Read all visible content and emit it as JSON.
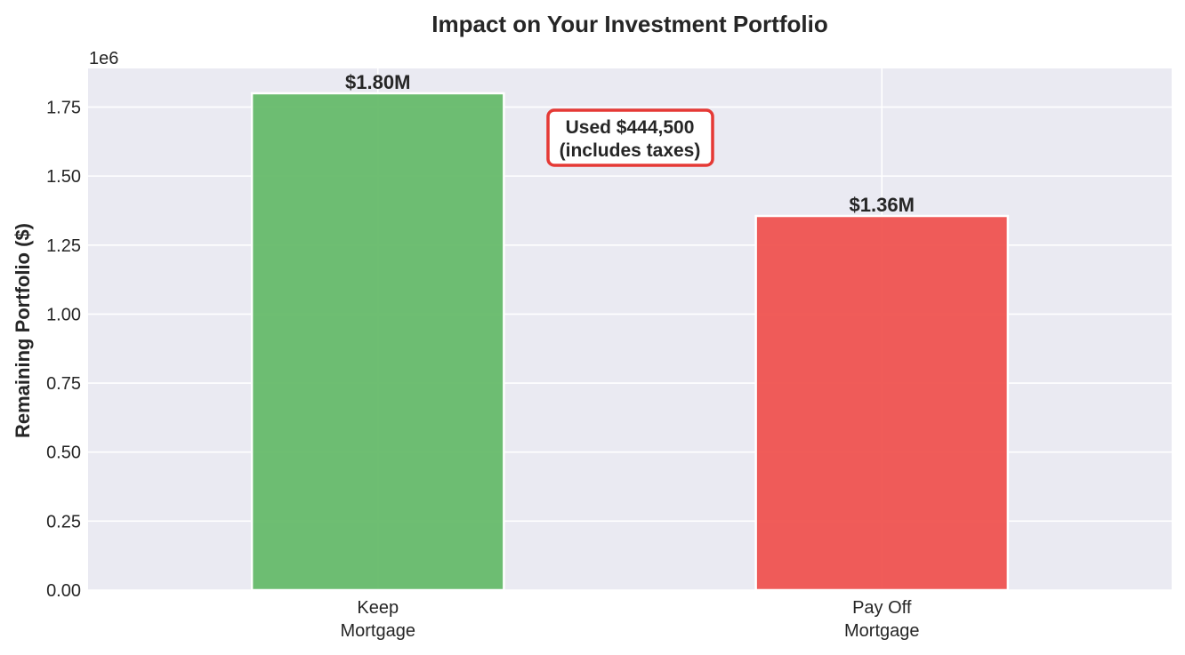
{
  "chart_data": {
    "type": "bar",
    "title": "Impact on Your Investment Portfolio",
    "xlabel": "",
    "ylabel": "Remaining Portfolio ($)",
    "categories": [
      "Keep\nMortgage",
      "Pay Off\nMortgage"
    ],
    "values": [
      1800000,
      1355500
    ],
    "data_labels": [
      "$1.80M",
      "$1.36M"
    ],
    "colors": [
      "#66bb6a",
      "#ef5350"
    ],
    "ylim": [
      0,
      1890000
    ],
    "yticks": [
      0,
      250000,
      500000,
      750000,
      1000000,
      1250000,
      1500000,
      1750000
    ],
    "ytick_labels": [
      "0.00",
      "0.25",
      "0.50",
      "0.75",
      "1.00",
      "1.25",
      "1.50",
      "1.75"
    ],
    "offset_text": "1e6",
    "annotation": {
      "lines": [
        "Used $444,500",
        "(includes taxes)"
      ],
      "border_color": "#e53935"
    },
    "grid": true,
    "background": "#eaeaf2"
  }
}
